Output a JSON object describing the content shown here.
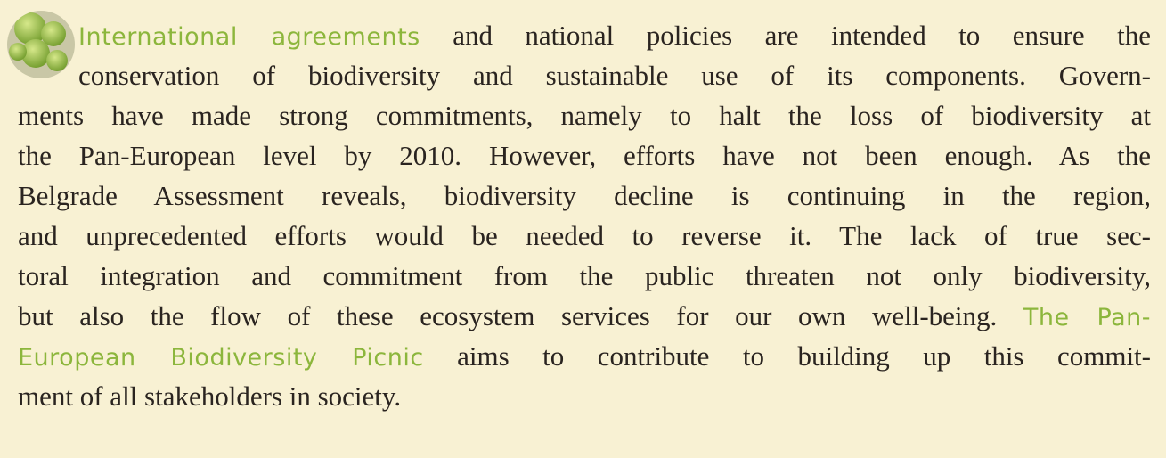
{
  "lines": [
    {
      "runs": [
        {
          "text": "International agreements",
          "color": "#8cb63c"
        },
        {
          "text": " and national policies are intended to ensure the"
        }
      ]
    },
    {
      "runs": [
        {
          "text": "conservation of biodiversity and sustainable use of its components. Govern-"
        }
      ]
    },
    {
      "runs": [
        {
          "text": "ments have made strong commitments, namely to halt the loss of biodiversity at"
        }
      ]
    },
    {
      "runs": [
        {
          "text": "the Pan-European level by 2010. However, efforts have not been enough. As the"
        }
      ]
    },
    {
      "runs": [
        {
          "text": "Belgrade Assessment reveals, biodiversity decline is continuing in the region,"
        }
      ]
    },
    {
      "runs": [
        {
          "text": "and unprecedented efforts would be needed to reverse it. The lack of true sec-"
        }
      ]
    },
    {
      "runs": [
        {
          "text": "toral integration and commitment from the public threaten not only biodiversity,"
        }
      ]
    },
    {
      "runs": [
        {
          "text": "but also the flow of these ecosystem services for our own well-being. "
        },
        {
          "text": "The Pan-",
          "color": "#8cb63c"
        }
      ]
    },
    {
      "runs": [
        {
          "text": "European Biodiversity Picnic",
          "color": "#8cb63c"
        },
        {
          "text": " aims to contribute to building up this commit-"
        }
      ]
    },
    {
      "runs": [
        {
          "text": "ment of all stakeholders in society."
        }
      ]
    }
  ]
}
